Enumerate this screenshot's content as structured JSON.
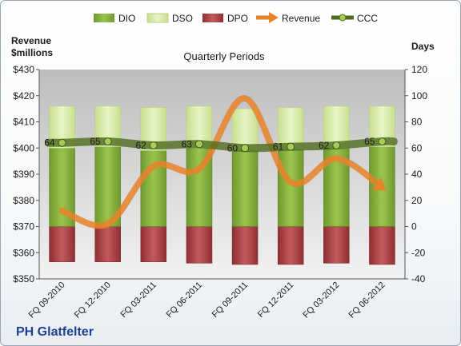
{
  "chart_data": {
    "type": "bar",
    "title": "PH Glatfelter",
    "subtitle": "Quarterly Periods",
    "left_axis_label": "Revenue\n$millions",
    "right_axis_label": "Days",
    "left_ylim": [
      350,
      430
    ],
    "left_ticks": [
      "$350",
      "$360",
      "$370",
      "$380",
      "$390",
      "$400",
      "$410",
      "$420",
      "$430"
    ],
    "right_ylim": [
      -40,
      120
    ],
    "right_ticks": [
      "-40",
      "-20",
      "0",
      "20",
      "40",
      "60",
      "80",
      "100",
      "120"
    ],
    "categories": [
      "FQ 09-2010",
      "FQ 12-2010",
      "FQ 03-2011",
      "FQ 06-2011",
      "FQ 09-2011",
      "FQ 12-2011",
      "FQ 03-2012",
      "FQ 06-2012"
    ],
    "legend_position": "top",
    "grid": false,
    "series": [
      {
        "name": "DIO",
        "kind": "stacked-bar",
        "axis": "right",
        "color": "#7fa83a",
        "values": [
          60,
          61,
          58,
          60,
          58,
          59,
          60,
          61
        ]
      },
      {
        "name": "DSO",
        "kind": "stacked-bar",
        "axis": "right",
        "color": "#d6e9a8",
        "values": [
          92,
          92,
          91,
          92,
          90,
          91,
          92,
          92
        ]
      },
      {
        "name": "DPO",
        "kind": "stacked-bar",
        "axis": "right",
        "color": "#a33a3d",
        "values": [
          -27,
          -27,
          -27,
          -28,
          -29,
          -29,
          -28,
          -29
        ]
      },
      {
        "name": "Revenue",
        "kind": "line",
        "axis": "left",
        "color": "#e8832a",
        "values": [
          376,
          371,
          393,
          392,
          419,
          387,
          396,
          385
        ]
      },
      {
        "name": "CCC",
        "kind": "line",
        "axis": "right",
        "color": "#4e6b1e",
        "values": [
          64,
          65,
          62,
          63,
          60,
          61,
          62,
          65
        ],
        "labels": [
          "64",
          "65",
          "62",
          "63",
          "60",
          "61",
          "62",
          "65"
        ]
      }
    ]
  }
}
